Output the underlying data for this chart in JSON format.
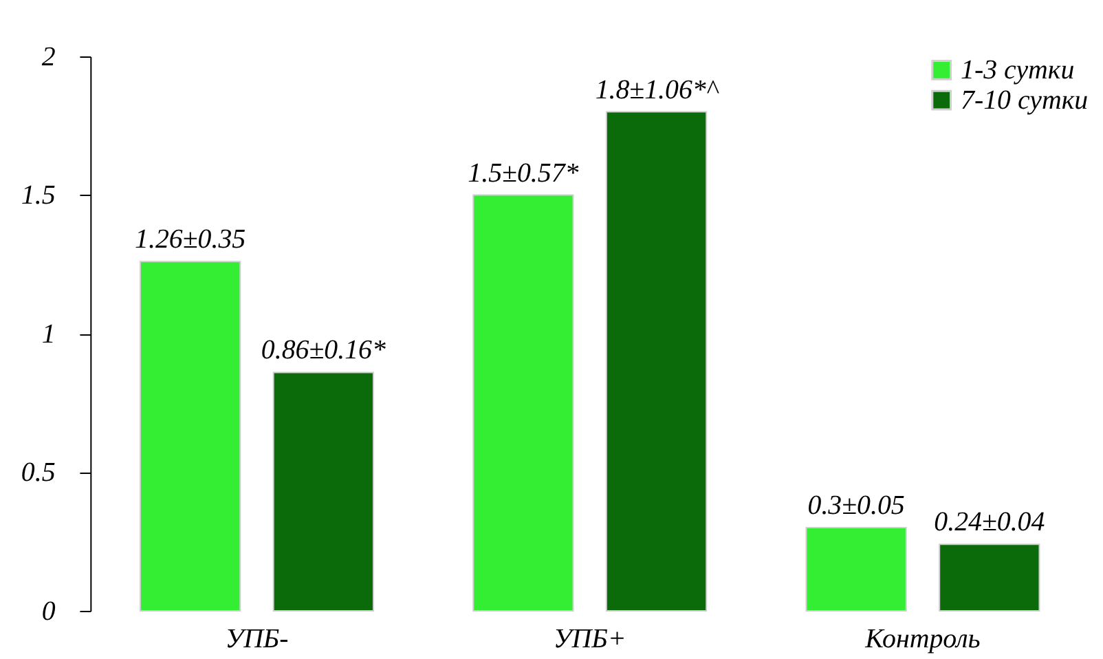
{
  "chart_data": {
    "type": "bar",
    "categories": [
      "УПБ-",
      "УПБ+",
      "Контроль"
    ],
    "series": [
      {
        "name": "1-3 сутки",
        "color": "#33ee33",
        "values": [
          1.26,
          1.5,
          0.3
        ],
        "value_labels": [
          "1.26±0.35",
          "1.5±0.57*",
          "0.3±0.05"
        ]
      },
      {
        "name": "7-10 сутки",
        "color": "#0b6b0b",
        "values": [
          0.86,
          1.8,
          0.24
        ],
        "value_labels": [
          "0.86±0.16*",
          "1.8±1.06*^",
          "0.24±0.04"
        ]
      }
    ],
    "ylim": [
      0,
      2
    ],
    "yticks": [
      0,
      0.5,
      1,
      1.5,
      2
    ],
    "grid": false,
    "legend": "top right"
  }
}
